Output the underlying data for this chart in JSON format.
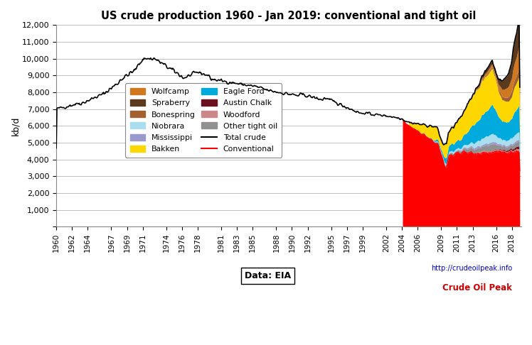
{
  "title": "US crude production 1960 - Jan 2019: conventional and tight oil",
  "ylabel": "kb/d",
  "ylim": [
    0,
    12000
  ],
  "yticks": [
    0,
    1000,
    2000,
    3000,
    4000,
    5000,
    6000,
    7000,
    8000,
    9000,
    10000,
    11000,
    12000
  ],
  "ytick_labels": [
    "",
    "1,000",
    "2,000",
    "3,000",
    "4,000",
    "5,000",
    "6,000",
    "7,000",
    "8,000",
    "9,000",
    "10,000",
    "11,000",
    "12,000"
  ],
  "background_color": "#ffffff",
  "plot_background": "#ffffff",
  "grid_color": "#c0c0c0",
  "stacked_colors": {
    "Conventional": "#FF0000",
    "Woodford": "#CC8888",
    "Austin Chalk": "#6B1020",
    "Other tight oil": "#909090",
    "Mississippi": "#9999CC",
    "Niobrara": "#AADDEE",
    "Eagle Ford": "#00AADD",
    "Bakken": "#FFD700",
    "Bonespring": "#A06030",
    "Wolfcamp": "#D07820",
    "Spraberry": "#5B3A1E"
  },
  "xtick_years": [
    1960,
    1962,
    1964,
    1967,
    1969,
    1971,
    1974,
    1976,
    1978,
    1981,
    1983,
    1985,
    1988,
    1990,
    1992,
    1995,
    1997,
    1999,
    2002,
    2004,
    2006,
    2009,
    2011,
    2013,
    2016,
    2018
  ]
}
